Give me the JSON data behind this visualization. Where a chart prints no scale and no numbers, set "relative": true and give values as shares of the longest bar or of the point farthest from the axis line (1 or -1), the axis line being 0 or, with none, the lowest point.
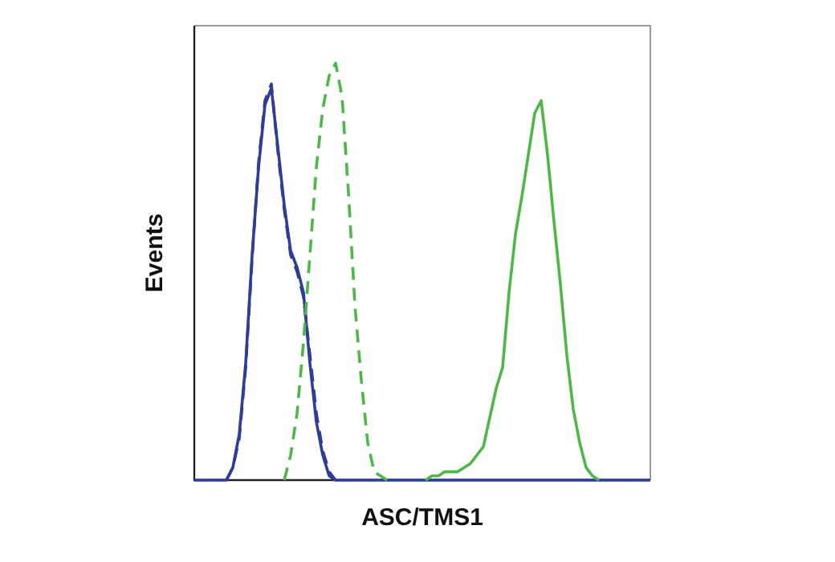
{
  "chart_data": {
    "type": "line",
    "relative": true,
    "xlabel": "ASC/TMS1",
    "ylabel": "Events",
    "legend": false,
    "marker": "none",
    "categories": [
      null,
      null,
      null,
      null,
      null,
      null,
      null,
      null,
      null,
      null,
      null,
      null,
      null,
      null,
      null,
      null,
      null,
      null,
      null,
      null,
      null,
      null,
      null,
      null,
      null,
      null,
      null,
      null,
      null,
      null,
      null,
      null,
      null,
      null,
      null,
      null,
      null,
      null,
      null,
      null,
      null,
      null,
      null,
      null,
      null,
      null,
      null,
      null,
      null,
      null,
      null,
      null,
      null,
      null,
      null,
      null,
      null,
      null,
      null,
      null,
      null,
      null,
      null,
      null,
      null,
      null,
      null,
      null,
      null,
      null,
      null,
      null
    ],
    "series": [
      {
        "color": "#4cb848",
        "line_style": "solid",
        "values": [
          null,
          null,
          null,
          null,
          null,
          null,
          null,
          null,
          null,
          null,
          null,
          null,
          null,
          null,
          null,
          null,
          null,
          null,
          null,
          null,
          null,
          null,
          null,
          null,
          null,
          null,
          null,
          null,
          null,
          null,
          null,
          null,
          null,
          null,
          null,
          null,
          0,
          0.01,
          0.01,
          0.02,
          0.02,
          0.02,
          0.03,
          0.04,
          0.06,
          0.08,
          0.15,
          0.22,
          0.27,
          0.45,
          0.59,
          0.68,
          0.78,
          0.88,
          0.91,
          0.78,
          0.62,
          0.47,
          0.3,
          0.17,
          0.09,
          0.03,
          0.01,
          0,
          null,
          null,
          null,
          null,
          null,
          null,
          null,
          null
        ]
      },
      {
        "color": "#4cb848",
        "line_style": "dashed",
        "values": [
          null,
          null,
          null,
          null,
          null,
          null,
          null,
          null,
          null,
          null,
          null,
          null,
          null,
          null,
          0,
          0.06,
          0.16,
          0.33,
          0.54,
          0.75,
          0.89,
          0.97,
          1,
          0.92,
          0.69,
          0.42,
          0.24,
          0.09,
          0.02,
          0.01,
          0,
          null,
          null,
          null,
          null,
          null,
          null,
          null,
          null,
          null,
          null,
          null,
          null,
          null,
          null,
          null,
          null,
          null,
          null,
          null,
          null,
          null,
          null,
          null,
          null,
          null,
          null,
          null,
          null,
          null,
          null,
          null,
          null,
          null,
          null,
          null,
          null,
          null,
          null,
          null,
          null,
          null
        ]
      },
      {
        "color": "#2e3d98",
        "line_style": "dashed",
        "values": [
          null,
          null,
          null,
          null,
          null,
          0,
          0.03,
          0.1,
          0.27,
          0.53,
          0.76,
          0.91,
          0.95,
          0.79,
          0.65,
          0.54,
          0.5,
          0.44,
          0.3,
          0.16,
          0.07,
          0.02,
          0,
          null,
          null,
          null,
          null,
          null,
          null,
          null,
          null,
          null,
          null,
          null,
          null,
          null,
          null,
          null,
          null,
          null,
          null,
          null,
          null,
          null,
          null,
          null,
          null,
          null,
          null,
          null,
          null,
          null,
          null,
          null,
          null,
          null,
          null,
          null,
          null,
          null,
          null,
          null,
          null,
          null,
          null,
          null,
          null,
          null,
          null,
          null,
          null,
          null
        ]
      },
      {
        "color": "#2e3d98",
        "line_style": "solid",
        "values": [
          0,
          0,
          0,
          0,
          0,
          0,
          0.03,
          0.11,
          0.28,
          0.54,
          0.75,
          0.9,
          0.94,
          0.8,
          0.66,
          0.55,
          0.51,
          0.45,
          0.28,
          0.14,
          0.06,
          0.01,
          0,
          0,
          0,
          0,
          0,
          0,
          0,
          0,
          0,
          0,
          0,
          0,
          0,
          0,
          0,
          0,
          0,
          0,
          0,
          0,
          0,
          0,
          0,
          0,
          0,
          0,
          0,
          0,
          0,
          0,
          0,
          0,
          0,
          0,
          0,
          0,
          0,
          0,
          0,
          0,
          0,
          0,
          0,
          0,
          0,
          0,
          0,
          0,
          0,
          0
        ]
      }
    ]
  }
}
